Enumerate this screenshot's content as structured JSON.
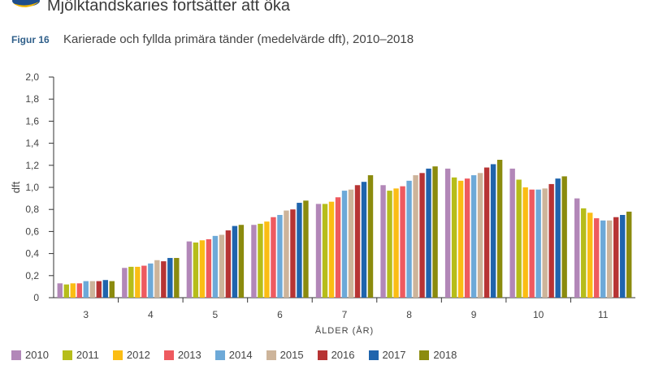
{
  "heading": "Mjölktandskaries fortsätter att öka",
  "figure_label": "Figur 16",
  "figure_title": "Karierade och fyllda primära tänder (medelvärde dft), 2010–2018",
  "icons": {
    "logo": "logo-icon"
  },
  "colors": {
    "2010": "#b287b8",
    "2011": "#b6bd1a",
    "2012": "#fbbd14",
    "2013": "#ee5a5f",
    "2014": "#6da9d8",
    "2015": "#cdb49a",
    "2016": "#b73434",
    "2017": "#1f64ad",
    "2018": "#8b8b0e"
  },
  "chart_data": {
    "type": "bar",
    "xlabel": "ÅLDER (ÅR)",
    "ylabel": "dft",
    "ylim": [
      0,
      2.0
    ],
    "yticks": [
      "0",
      "0,2",
      "0,4",
      "0,6",
      "0,8",
      "1,0",
      "1,2",
      "1,4",
      "1,6",
      "1,8",
      "2,0"
    ],
    "grid": false,
    "legend": "bottom",
    "categories": [
      "3",
      "4",
      "5",
      "6",
      "7",
      "8",
      "9",
      "10",
      "11"
    ],
    "series": [
      {
        "name": "2010",
        "values": [
          0.13,
          0.27,
          0.51,
          0.66,
          0.85,
          1.02,
          1.17,
          1.17,
          0.9
        ]
      },
      {
        "name": "2011",
        "values": [
          0.12,
          0.28,
          0.5,
          0.67,
          0.85,
          0.97,
          1.09,
          1.07,
          0.81
        ]
      },
      {
        "name": "2012",
        "values": [
          0.13,
          0.28,
          0.52,
          0.69,
          0.87,
          0.99,
          1.06,
          1.0,
          0.77
        ]
      },
      {
        "name": "2013",
        "values": [
          0.13,
          0.29,
          0.53,
          0.73,
          0.91,
          1.01,
          1.08,
          0.98,
          0.72
        ]
      },
      {
        "name": "2014",
        "values": [
          0.15,
          0.31,
          0.56,
          0.75,
          0.97,
          1.06,
          1.11,
          0.98,
          0.7
        ]
      },
      {
        "name": "2015",
        "values": [
          0.15,
          0.34,
          0.57,
          0.79,
          0.98,
          1.11,
          1.13,
          0.99,
          0.7
        ]
      },
      {
        "name": "2016",
        "values": [
          0.15,
          0.33,
          0.61,
          0.8,
          1.02,
          1.13,
          1.18,
          1.03,
          0.73
        ]
      },
      {
        "name": "2017",
        "values": [
          0.16,
          0.36,
          0.65,
          0.86,
          1.05,
          1.17,
          1.21,
          1.08,
          0.75
        ]
      },
      {
        "name": "2018",
        "values": [
          0.15,
          0.36,
          0.66,
          0.88,
          1.11,
          1.19,
          1.25,
          1.1,
          0.78
        ]
      }
    ]
  }
}
